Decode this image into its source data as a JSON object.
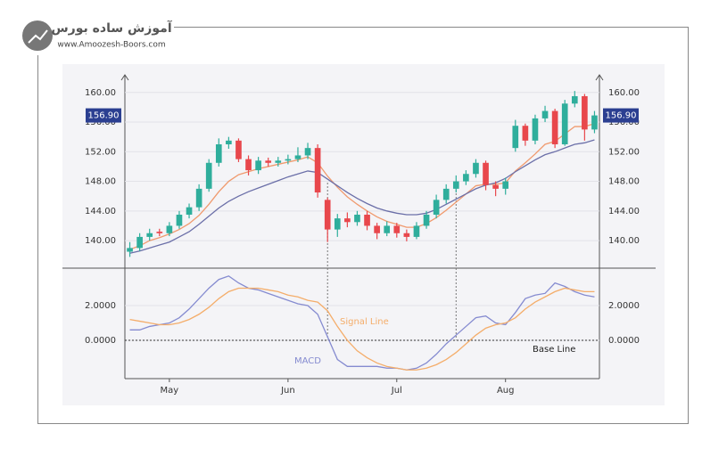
{
  "branding": {
    "title": "آموزش ساده بورس",
    "url": "www.Amoozesh-Boors.com"
  },
  "chart_data": [
    {
      "type": "candlestick",
      "up_color": "#2fae9c",
      "down_color": "#e8474c",
      "grid": true,
      "ylim": [
        136.4,
        161.9
      ],
      "yticks": [
        {
          "value": 140,
          "label": "140.00"
        },
        {
          "value": 144,
          "label": "144.00"
        },
        {
          "value": 148,
          "label": "148.00"
        },
        {
          "value": 152,
          "label": "152.00"
        },
        {
          "value": 156,
          "label": "156.00"
        },
        {
          "value": 160,
          "label": "160.00"
        }
      ],
      "last_price": {
        "value": 156.9,
        "label": "156.90"
      },
      "open": [
        138.5,
        139.0,
        140.5,
        141.2,
        141.0,
        142.0,
        143.5,
        144.5,
        147.0,
        150.5,
        153.0,
        153.5,
        151.0,
        149.5,
        150.8,
        150.5,
        150.8,
        151.0,
        151.5,
        152.5,
        145.5,
        141.5,
        143.0,
        142.5,
        143.5,
        142.0,
        141.0,
        142.0,
        141.0,
        140.5,
        142.0,
        143.5,
        145.5,
        147.0,
        148.0,
        149.0,
        150.5,
        147.5,
        147.0,
        152.5,
        155.5,
        153.5,
        156.5,
        157.5,
        153.0,
        158.5,
        159.5,
        155.0
      ],
      "high": [
        139.8,
        141.0,
        141.6,
        141.6,
        142.5,
        144.0,
        145.0,
        147.6,
        151.0,
        153.8,
        154.0,
        153.8,
        151.5,
        151.3,
        151.2,
        151.3,
        151.6,
        152.6,
        153.2,
        153.0,
        145.8,
        143.6,
        143.8,
        144.0,
        144.0,
        142.4,
        142.6,
        142.4,
        141.5,
        142.5,
        144.0,
        146.2,
        147.6,
        148.8,
        149.5,
        151.0,
        150.8,
        148.0,
        148.5,
        156.3,
        155.8,
        157.0,
        158.2,
        157.8,
        159.0,
        160.2,
        159.8,
        157.5
      ],
      "low": [
        137.8,
        138.6,
        140.0,
        140.6,
        140.6,
        141.6,
        143.0,
        144.0,
        146.6,
        150.0,
        152.4,
        150.6,
        148.8,
        149.0,
        150.0,
        150.0,
        150.3,
        150.6,
        151.0,
        145.8,
        139.8,
        140.5,
        141.8,
        142.0,
        141.4,
        140.2,
        140.6,
        140.4,
        139.9,
        140.2,
        141.6,
        143.0,
        145.0,
        146.5,
        147.5,
        148.5,
        146.8,
        146.0,
        146.2,
        152.0,
        152.8,
        153.0,
        156.0,
        152.5,
        152.8,
        158.0,
        153.5,
        154.5
      ],
      "close": [
        139.0,
        140.5,
        141.0,
        141.0,
        142.0,
        143.5,
        144.5,
        147.0,
        150.5,
        153.0,
        153.5,
        151.0,
        149.5,
        150.8,
        150.5,
        150.8,
        151.0,
        151.5,
        152.5,
        146.5,
        141.5,
        143.0,
        142.5,
        143.5,
        142.0,
        141.0,
        142.0,
        141.0,
        140.5,
        142.0,
        143.5,
        145.5,
        147.0,
        148.0,
        149.0,
        150.5,
        147.5,
        147.0,
        148.0,
        155.5,
        153.5,
        156.5,
        157.5,
        153.0,
        158.5,
        159.5,
        155.0,
        156.9
      ],
      "lines": [
        {
          "color": "#f09a6e",
          "values": [
            138.8,
            139.3,
            140.0,
            140.4,
            140.9,
            141.5,
            142.3,
            143.4,
            144.9,
            146.6,
            148.0,
            148.9,
            149.3,
            149.7,
            150.0,
            150.3,
            150.6,
            150.9,
            151.3,
            150.5,
            148.7,
            147.2,
            145.9,
            144.9,
            144.0,
            143.2,
            142.6,
            142.2,
            141.8,
            141.8,
            142.3,
            143.1,
            144.1,
            145.2,
            146.3,
            147.4,
            147.6,
            147.6,
            147.8,
            149.4,
            150.5,
            151.7,
            153.0,
            153.4,
            154.4,
            155.4,
            155.4,
            155.8
          ]
        },
        {
          "color": "#6b6fa8",
          "values": [
            138.3,
            138.6,
            139.0,
            139.4,
            139.8,
            140.5,
            141.2,
            142.2,
            143.3,
            144.4,
            145.3,
            146.0,
            146.6,
            147.1,
            147.6,
            148.1,
            148.6,
            149.0,
            149.4,
            149.2,
            148.3,
            147.4,
            146.5,
            145.7,
            145.0,
            144.4,
            144.0,
            143.7,
            143.5,
            143.5,
            143.7,
            144.2,
            144.9,
            145.6,
            146.3,
            147.0,
            147.5,
            147.8,
            148.4,
            149.3,
            150.1,
            150.9,
            151.6,
            152.0,
            152.5,
            153.0,
            153.2,
            153.6
          ]
        }
      ]
    },
    {
      "type": "line",
      "grid": true,
      "ylim": [
        -2.2,
        4.1
      ],
      "yticks": [
        {
          "value": 0,
          "label": "0.0000"
        },
        {
          "value": 2,
          "label": "2.0000"
        }
      ],
      "baseline": 0,
      "categories": [
        null,
        null,
        null,
        null,
        "May",
        null,
        null,
        null,
        null,
        null,
        null,
        null,
        null,
        null,
        null,
        null,
        "Jun",
        null,
        null,
        null,
        null,
        null,
        null,
        null,
        null,
        null,
        null,
        "Jul",
        null,
        null,
        null,
        null,
        null,
        null,
        null,
        null,
        null,
        null,
        "Aug",
        null,
        null,
        null,
        null,
        null,
        null,
        null,
        null,
        null
      ],
      "series": [
        {
          "name": "MACD",
          "color": "#858bd0",
          "values": [
            0.6,
            0.6,
            0.8,
            0.9,
            1.0,
            1.3,
            1.8,
            2.4,
            3.0,
            3.5,
            3.7,
            3.3,
            3.0,
            2.9,
            2.7,
            2.5,
            2.3,
            2.1,
            2.0,
            1.5,
            0.2,
            -1.1,
            -1.5,
            -1.5,
            -1.5,
            -1.5,
            -1.6,
            -1.6,
            -1.7,
            -1.6,
            -1.3,
            -0.8,
            -0.2,
            0.3,
            0.8,
            1.3,
            1.4,
            1.0,
            0.9,
            1.6,
            2.4,
            2.6,
            2.7,
            3.3,
            3.1,
            2.8,
            2.6,
            2.5
          ]
        },
        {
          "name": "Signal Line",
          "color": "#f4ad6a",
          "values": [
            1.2,
            1.1,
            1.0,
            0.9,
            0.9,
            1.0,
            1.2,
            1.5,
            1.9,
            2.4,
            2.8,
            3.0,
            3.0,
            3.0,
            2.9,
            2.8,
            2.6,
            2.5,
            2.3,
            2.2,
            1.7,
            0.8,
            0.0,
            -0.6,
            -1.0,
            -1.3,
            -1.5,
            -1.6,
            -1.7,
            -1.7,
            -1.6,
            -1.4,
            -1.1,
            -0.7,
            -0.2,
            0.3,
            0.7,
            0.9,
            1.0,
            1.3,
            1.8,
            2.2,
            2.5,
            2.8,
            3.0,
            2.9,
            2.8,
            2.8
          ]
        }
      ],
      "baseline_label": "Base Line"
    }
  ]
}
